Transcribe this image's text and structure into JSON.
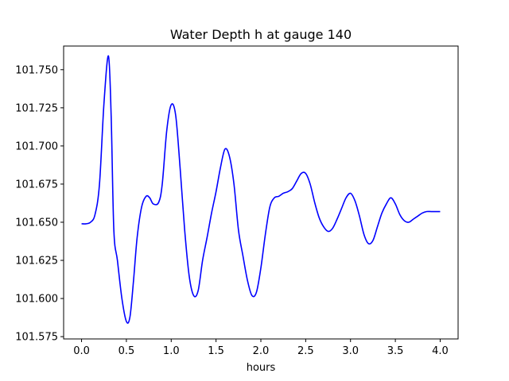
{
  "chart_data": {
    "type": "line",
    "title": "Water Depth h at gauge 140",
    "xlabel": "hours",
    "ylabel": "",
    "xlim": [
      -0.2,
      4.2
    ],
    "ylim": [
      101.5735,
      101.7655
    ],
    "xticks": [
      0.0,
      0.5,
      1.0,
      1.5,
      2.0,
      2.5,
      3.0,
      3.5,
      4.0
    ],
    "xtick_labels": [
      "0.0",
      "0.5",
      "1.0",
      "1.5",
      "2.0",
      "2.5",
      "3.0",
      "3.5",
      "4.0"
    ],
    "yticks": [
      101.575,
      101.6,
      101.625,
      101.65,
      101.675,
      101.7,
      101.725,
      101.75
    ],
    "ytick_labels": [
      "101.575",
      "101.600",
      "101.625",
      "101.650",
      "101.675",
      "101.700",
      "101.725",
      "101.750"
    ],
    "grid": false,
    "series": [
      {
        "color": "#0000ff",
        "x": [
          0.0,
          0.05,
          0.1,
          0.15,
          0.2,
          0.25,
          0.3,
          0.33,
          0.36,
          0.4,
          0.45,
          0.5,
          0.54,
          0.58,
          0.62,
          0.67,
          0.72,
          0.76,
          0.8,
          0.86,
          0.9,
          0.95,
          1.0,
          1.05,
          1.1,
          1.15,
          1.2,
          1.25,
          1.3,
          1.35,
          1.4,
          1.45,
          1.5,
          1.55,
          1.6,
          1.65,
          1.7,
          1.75,
          1.8,
          1.85,
          1.9,
          1.95,
          2.0,
          2.05,
          2.1,
          2.15,
          2.2,
          2.25,
          2.3,
          2.35,
          2.4,
          2.45,
          2.5,
          2.55,
          2.6,
          2.65,
          2.7,
          2.75,
          2.8,
          2.85,
          2.9,
          2.95,
          3.0,
          3.05,
          3.1,
          3.15,
          3.2,
          3.25,
          3.3,
          3.35,
          3.4,
          3.45,
          3.5,
          3.55,
          3.6,
          3.65,
          3.7,
          3.75,
          3.8,
          3.85,
          3.9,
          3.95,
          4.0
        ],
        "y": [
          101.649,
          101.649,
          101.65,
          101.655,
          101.675,
          101.728,
          101.759,
          101.72,
          101.645,
          101.625,
          101.6,
          101.585,
          101.588,
          101.612,
          101.64,
          101.66,
          101.667,
          101.666,
          101.662,
          101.663,
          101.675,
          101.71,
          101.727,
          101.72,
          101.685,
          101.645,
          101.615,
          101.602,
          101.605,
          101.625,
          101.64,
          101.656,
          101.67,
          101.686,
          101.698,
          101.693,
          101.675,
          101.645,
          101.628,
          101.612,
          101.602,
          101.604,
          101.62,
          101.642,
          101.66,
          101.666,
          101.667,
          101.669,
          101.67,
          101.672,
          101.677,
          101.682,
          101.682,
          101.675,
          101.663,
          101.653,
          101.647,
          101.644,
          101.646,
          101.652,
          101.659,
          101.666,
          101.669,
          101.664,
          101.654,
          101.642,
          101.636,
          101.638,
          101.647,
          101.656,
          101.662,
          101.666,
          101.662,
          101.655,
          101.651,
          101.65,
          101.652,
          101.654,
          101.656,
          101.657,
          101.657,
          101.657,
          101.657
        ]
      }
    ]
  }
}
